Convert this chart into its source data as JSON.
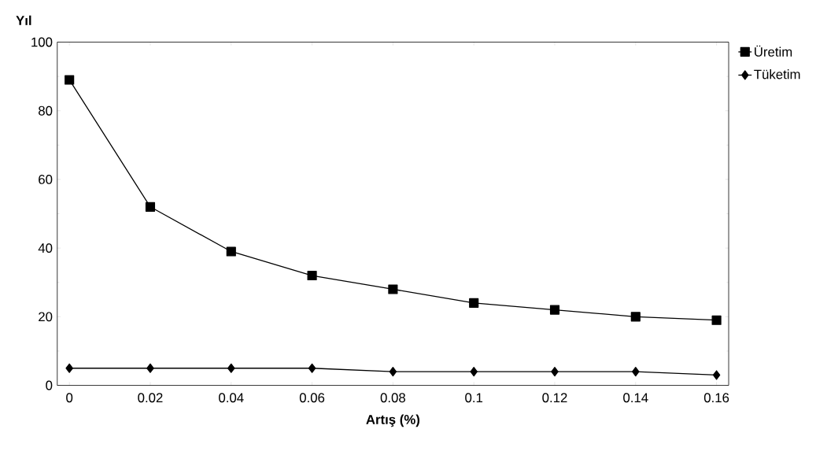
{
  "chart_data": {
    "type": "line",
    "xlabel": "Artış (%)",
    "ylabel": "Yıl",
    "x": [
      0,
      0.02,
      0.04,
      0.06,
      0.08,
      0.1,
      0.12,
      0.14,
      0.16
    ],
    "series": [
      {
        "name": "Üretim",
        "color": "#000000",
        "marker": "square",
        "values": [
          89,
          52,
          39,
          32,
          28,
          24,
          22,
          20,
          19
        ]
      },
      {
        "name": "Tüketim",
        "color": "#000000",
        "marker": "diamond",
        "values": [
          5,
          5,
          5,
          5,
          4,
          4,
          4,
          4,
          3
        ]
      }
    ],
    "xlim": [
      -0.003,
      0.163
    ],
    "ylim": [
      0,
      100
    ],
    "xticks": [
      0,
      0.02,
      0.04,
      0.06,
      0.08,
      0.1,
      0.12,
      0.14,
      0.16
    ],
    "yticks": [
      0,
      20,
      40,
      60,
      80,
      100
    ],
    "legend": "top right",
    "line_style": "solid"
  }
}
